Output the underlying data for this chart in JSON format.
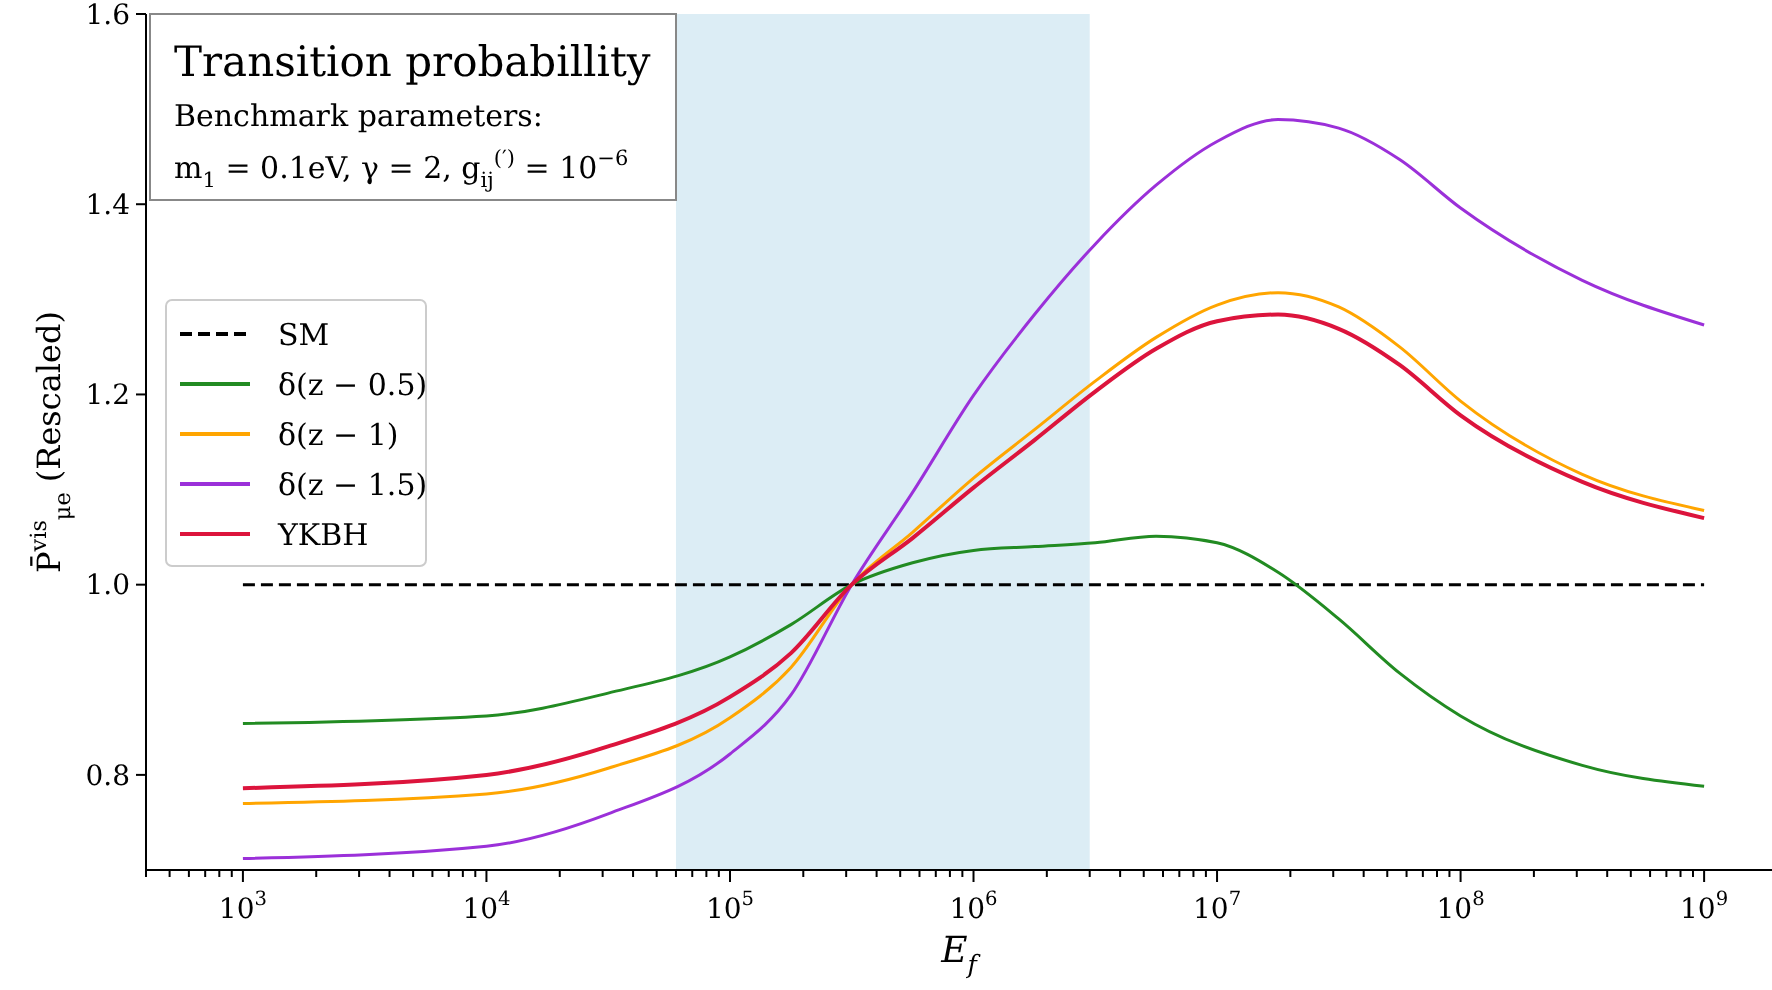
{
  "chart_data": {
    "type": "line",
    "title": "Transition probabillity",
    "subtitle": "Benchmark parameters:",
    "annotations": [
      "m$_{1}$ = 0.1eV, γ = 2, g$_{ij}$$^{(′)}$ = 10$^{−6}$"
    ],
    "xlabel": "E$_{f}$",
    "ylabel": "P̄$^{vis}$$_{μe}$ (Rescaled)",
    "log": "x",
    "grid": false,
    "legend": "left",
    "x": [
      1000,
      10000,
      31600,
      100000,
      178000,
      316000,
      562000,
      1000000,
      1780000,
      3160000,
      5620000,
      10000000,
      17800000,
      31600000,
      56200000,
      100000000,
      316000000,
      1000000000
    ],
    "series": [
      {
        "name": "SM",
        "color": "#000000",
        "line_style": "dashed",
        "values": [
          1,
          1,
          1,
          1,
          1,
          1,
          1,
          1,
          1,
          1,
          1,
          1,
          1,
          1,
          1,
          1,
          1,
          1
        ]
      },
      {
        "name": "δ(z − 0.5)",
        "color": "#228b22",
        "line_style": "solid",
        "values": [
          0.854,
          0.862,
          0.886,
          0.924,
          0.958,
          1.0,
          1.023,
          1.036,
          1.04,
          1.044,
          1.051,
          1.044,
          1.013,
          0.964,
          0.907,
          0.862,
          0.81,
          0.788
        ]
      },
      {
        "name": "δ(z − 1)",
        "color": "#ffa500",
        "line_style": "solid",
        "values": [
          0.77,
          0.78,
          0.807,
          0.86,
          0.913,
          1.0,
          1.055,
          1.112,
          1.163,
          1.214,
          1.26,
          1.294,
          1.307,
          1.292,
          1.25,
          1.193,
          1.116,
          1.078
        ]
      },
      {
        "name": "δ(z − 1.5)",
        "color": "#9b30d9",
        "line_style": "solid",
        "values": [
          0.712,
          0.725,
          0.759,
          0.822,
          0.884,
          1.0,
          1.097,
          1.199,
          1.284,
          1.358,
          1.42,
          1.466,
          1.489,
          1.48,
          1.447,
          1.396,
          1.32,
          1.273
        ]
      },
      {
        "name": "YKBH",
        "color": "#dc143c",
        "line_style": "solid",
        "values": [
          0.786,
          0.8,
          0.83,
          0.882,
          0.928,
          1.0,
          1.049,
          1.102,
          1.152,
          1.203,
          1.248,
          1.277,
          1.284,
          1.269,
          1.231,
          1.178,
          1.108,
          1.07
        ]
      }
    ],
    "bands": [
      {
        "axis": "x",
        "from": 60000,
        "to": 3000000,
        "color": "#dcedf5"
      }
    ],
    "xlim": [
      400,
      1900000000
    ],
    "ylim": [
      0.7,
      1.6
    ],
    "yticks": [
      {
        "value": 0.8,
        "label": "0.8"
      },
      {
        "value": 1,
        "label": "1.0"
      },
      {
        "value": 1.2,
        "label": "1.2"
      },
      {
        "value": 1.4,
        "label": "1.4"
      },
      {
        "value": 1.6,
        "label": "1.6"
      }
    ],
    "xticks": [
      {
        "value": 400,
        "label": null
      },
      {
        "value": 500,
        "label": null
      },
      {
        "value": 600,
        "label": null
      },
      {
        "value": 700,
        "label": null
      },
      {
        "value": 800,
        "label": null
      },
      {
        "value": 900,
        "label": null
      },
      {
        "value": 1000,
        "label": "10$^{3}$"
      },
      {
        "value": 2000,
        "label": null
      },
      {
        "value": 3000,
        "label": null
      },
      {
        "value": 4000,
        "label": null
      },
      {
        "value": 5000,
        "label": null
      },
      {
        "value": 6000,
        "label": null
      },
      {
        "value": 7000,
        "label": null
      },
      {
        "value": 8000,
        "label": null
      },
      {
        "value": 9000,
        "label": null
      },
      {
        "value": 10000,
        "label": "10$^{4}$"
      },
      {
        "value": 20000,
        "label": null
      },
      {
        "value": 30000,
        "label": null
      },
      {
        "value": 40000,
        "label": null
      },
      {
        "value": 50000,
        "label": null
      },
      {
        "value": 60000,
        "label": null
      },
      {
        "value": 70000,
        "label": null
      },
      {
        "value": 80000,
        "label": null
      },
      {
        "value": 90000,
        "label": null
      },
      {
        "value": 100000,
        "label": "10$^{5}$"
      },
      {
        "value": 200000,
        "label": null
      },
      {
        "value": 300000,
        "label": null
      },
      {
        "value": 400000,
        "label": null
      },
      {
        "value": 500000,
        "label": null
      },
      {
        "value": 600000,
        "label": null
      },
      {
        "value": 700000,
        "label": null
      },
      {
        "value": 800000,
        "label": null
      },
      {
        "value": 900000,
        "label": null
      },
      {
        "value": 1000000,
        "label": "10$^{6}$"
      },
      {
        "value": 2000000,
        "label": null
      },
      {
        "value": 3000000,
        "label": null
      },
      {
        "value": 4000000,
        "label": null
      },
      {
        "value": 5000000,
        "label": null
      },
      {
        "value": 6000000,
        "label": null
      },
      {
        "value": 7000000,
        "label": null
      },
      {
        "value": 8000000,
        "label": null
      },
      {
        "value": 9000000,
        "label": null
      },
      {
        "value": 10000000,
        "label": "10$^{7}$"
      },
      {
        "value": 20000000,
        "label": null
      },
      {
        "value": 30000000,
        "label": null
      },
      {
        "value": 40000000,
        "label": null
      },
      {
        "value": 50000000,
        "label": null
      },
      {
        "value": 60000000,
        "label": null
      },
      {
        "value": 70000000,
        "label": null
      },
      {
        "value": 80000000,
        "label": null
      },
      {
        "value": 90000000,
        "label": null
      },
      {
        "value": 100000000,
        "label": "10$^{8}$"
      },
      {
        "value": 200000000,
        "label": null
      },
      {
        "value": 300000000,
        "label": null
      },
      {
        "value": 400000000,
        "label": null
      },
      {
        "value": 500000000,
        "label": null
      },
      {
        "value": 600000000,
        "label": null
      },
      {
        "value": 700000000,
        "label": null
      },
      {
        "value": 800000000,
        "label": null
      },
      {
        "value": 900000000,
        "label": null
      },
      {
        "value": 1000000000,
        "label": "10$^{9}$"
      }
    ]
  }
}
